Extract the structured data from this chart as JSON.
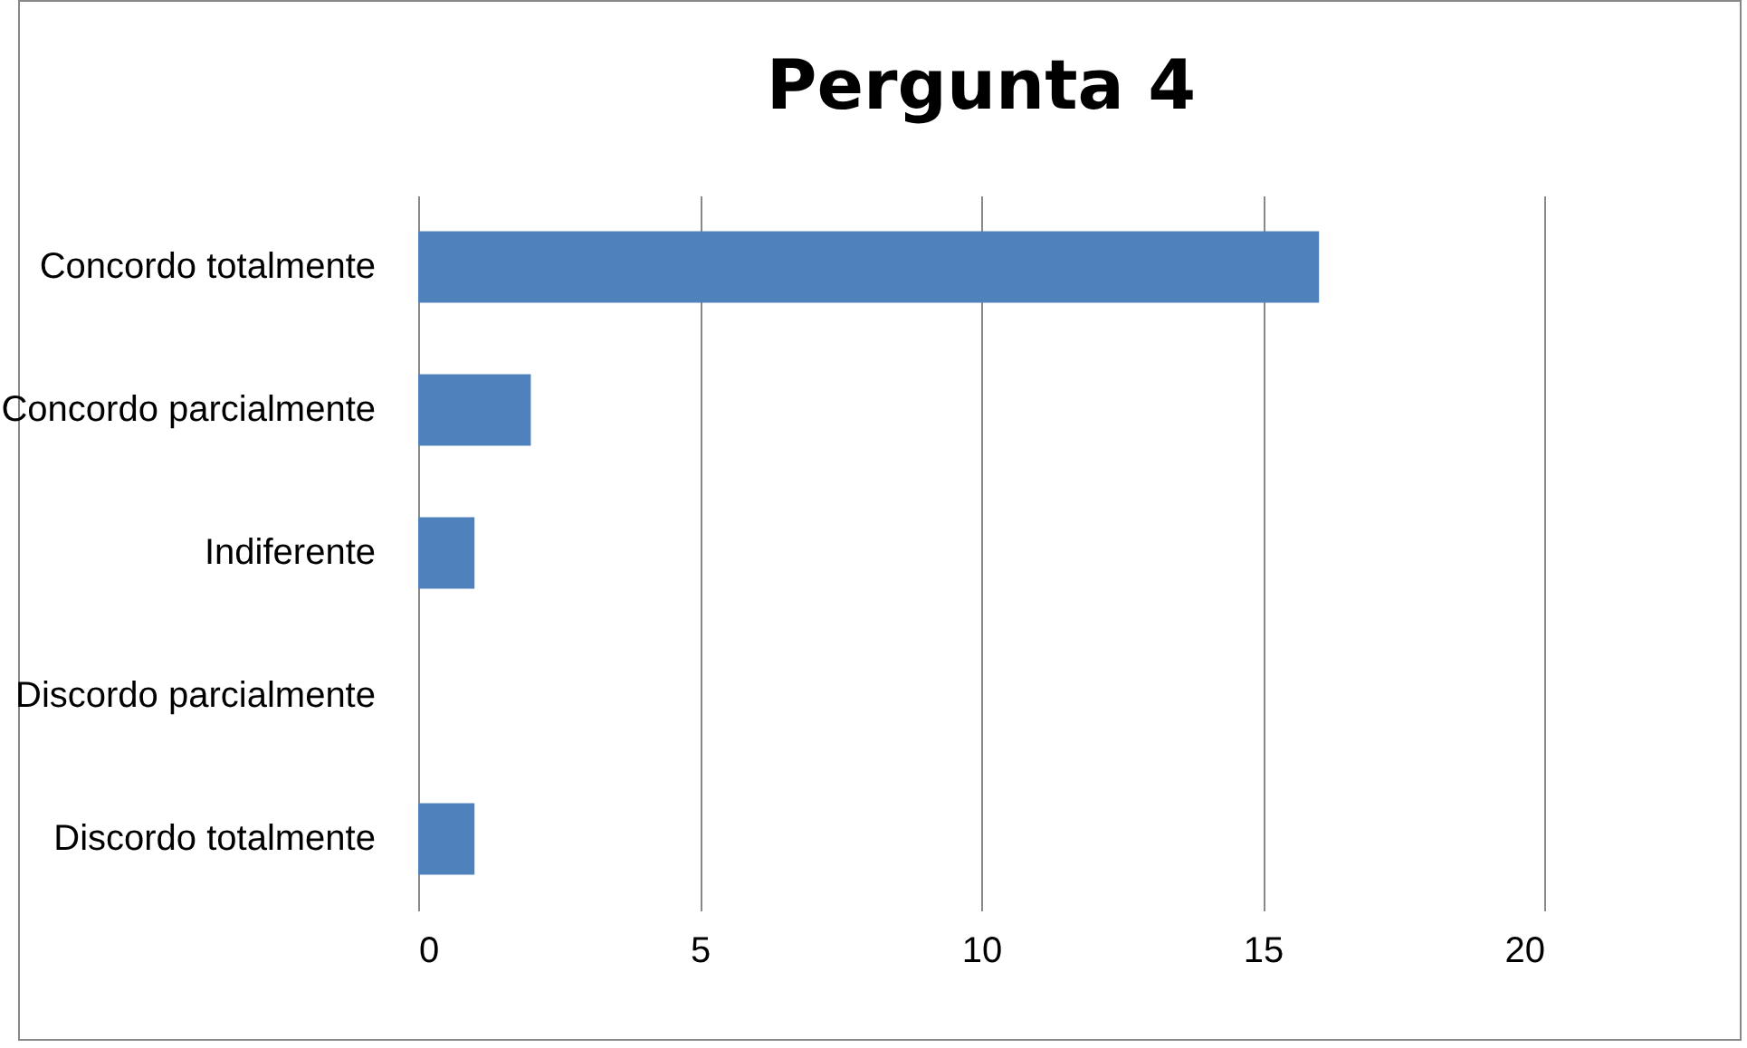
{
  "chart_data": {
    "type": "bar",
    "title": "Pergunta 4",
    "orientation": "horizontal",
    "categories": [
      "Concordo totalmente",
      "Concordo parcialmente",
      "Indiferente",
      "Discordo parcialmente",
      "Discordo totalmente"
    ],
    "values": [
      16,
      2,
      1,
      0,
      1
    ],
    "color": "#4f81bd",
    "xlim": [
      0,
      20
    ],
    "xticks": [
      0,
      5,
      10,
      15,
      20
    ],
    "grid": "x"
  }
}
